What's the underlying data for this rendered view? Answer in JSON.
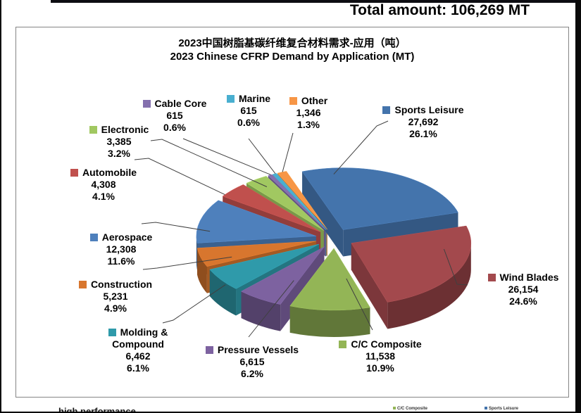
{
  "header": {
    "total_label": "Total amount: 106,269 MT"
  },
  "chart_data": {
    "type": "pie",
    "style": "3d-exploded",
    "title_cn": "2023中国树脂基碳纤维复合材料需求-应用（吨）",
    "title_en": "2023 Chinese CFRP Demand by Application (MT)",
    "total_text": "106,269",
    "unit": "MT",
    "legend_position": "callout-labels-around-pie",
    "slices": [
      {
        "id": "sports-leisure",
        "label": "Sports Leisure",
        "value": 27692,
        "value_text": "27,692",
        "pct_text": "26.1%",
        "color": "#4474AC"
      },
      {
        "id": "wind-blades",
        "label": "Wind Blades",
        "value": 26154,
        "value_text": "26,154",
        "pct_text": "24.6%",
        "color": "#A3494D"
      },
      {
        "id": "cc-composite",
        "label": "C/C Composite",
        "value": 11538,
        "value_text": "11,538",
        "pct_text": "10.9%",
        "color": "#93B556"
      },
      {
        "id": "pressure-vessels",
        "label": "Pressure Vessels",
        "value": 6615,
        "value_text": "6,615",
        "pct_text": "6.2%",
        "color": "#7D62A0"
      },
      {
        "id": "molding-compound",
        "label": "Molding & Compound",
        "value": 6462,
        "value_text": "6,462",
        "pct_text": "6.1%",
        "color": "#2F9AAA"
      },
      {
        "id": "construction",
        "label": "Construction",
        "value": 5231,
        "value_text": "5,231",
        "pct_text": "4.9%",
        "color": "#D8762E"
      },
      {
        "id": "aerospace",
        "label": "Aerospace",
        "value": 12308,
        "value_text": "12,308",
        "pct_text": "11.6%",
        "color": "#4E80BC"
      },
      {
        "id": "automobile",
        "label": "Automobile",
        "value": 4308,
        "value_text": "4,308",
        "pct_text": "4.1%",
        "color": "#C0504D"
      },
      {
        "id": "electronic",
        "label": "Electronic",
        "value": 3385,
        "value_text": "3,385",
        "pct_text": "3.2%",
        "color": "#A1C861"
      },
      {
        "id": "cable-core",
        "label": "Cable Core",
        "value": 615,
        "value_text": "615",
        "pct_text": "0.6%",
        "color": "#8470AE"
      },
      {
        "id": "marine",
        "label": "Marine",
        "value": 615,
        "value_text": "615",
        "pct_text": "0.6%",
        "color": "#49AFD0"
      },
      {
        "id": "other",
        "label": "Other",
        "value": 1346,
        "value_text": "1,346",
        "pct_text": "1.3%",
        "color": "#F79646"
      }
    ]
  },
  "footer": {
    "fragments": [
      "high performance",
      "C/C Composite",
      "Sports Leisure"
    ]
  }
}
